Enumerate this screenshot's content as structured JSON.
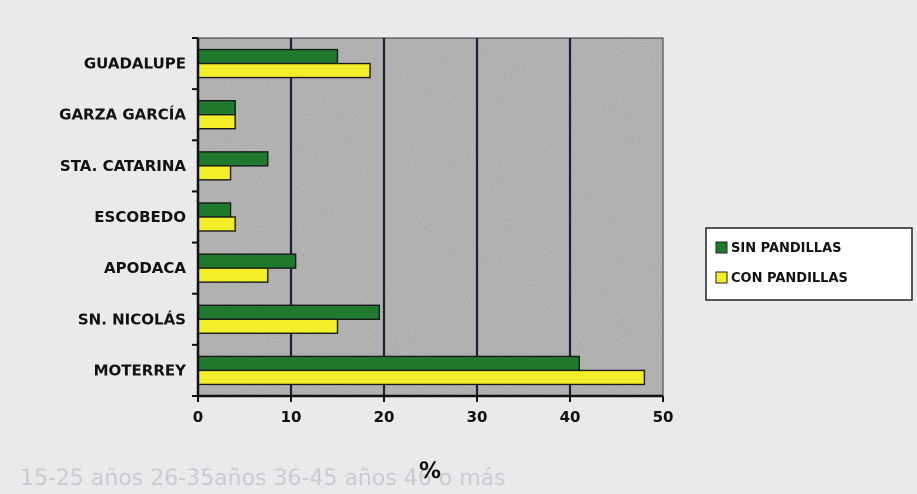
{
  "chart_data": {
    "type": "bar",
    "orientation": "horizontal",
    "categories": [
      "GUADALUPE",
      "GARZA GARCÍA",
      "STA. CATARINA",
      "ESCOBEDO",
      "APODACA",
      "SN. NICOLÁS",
      "MOTERREY"
    ],
    "series": [
      {
        "name": "SIN PANDILLAS",
        "color": "#1f7a2e",
        "values": [
          15,
          4,
          7.5,
          3.5,
          10.5,
          19.5,
          41
        ]
      },
      {
        "name": "CON PANDILLAS",
        "color": "#f2ef2a",
        "values": [
          18.5,
          4,
          3.5,
          4,
          7.5,
          15,
          48
        ]
      }
    ],
    "xlabel": "%",
    "ylabel": "",
    "xlim": [
      0,
      50
    ],
    "xticks": [
      "0",
      "10",
      "20",
      "30",
      "40",
      "50"
    ],
    "grid": "vertical",
    "legend": "right"
  },
  "background_text": "15-25 años   26-35años   36-45 años   46 o más"
}
